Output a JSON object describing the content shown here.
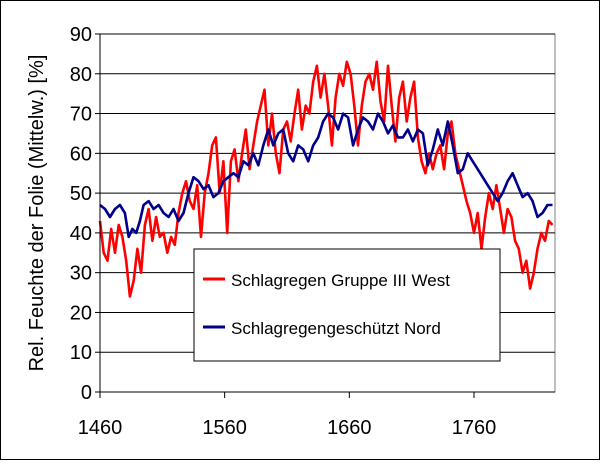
{
  "chart_data": {
    "type": "line",
    "title": "",
    "xlabel": "",
    "ylabel": "Rel. Feuchte der Folie (Mittelw.) [%]",
    "xlim": [
      1460,
      1825
    ],
    "ylim": [
      0,
      90
    ],
    "xticks": [
      1460,
      1560,
      1660,
      1760
    ],
    "yticks": [
      0,
      10,
      20,
      30,
      40,
      50,
      60,
      70,
      80,
      90
    ],
    "grid": "horizontal",
    "legend_position": "bottom-center inside plot",
    "series": [
      {
        "name": "Schlagregen Gruppe III West",
        "color": "#ff0000",
        "points": [
          [
            1460,
            43
          ],
          [
            1463,
            35
          ],
          [
            1466,
            33
          ],
          [
            1469,
            41
          ],
          [
            1472,
            35
          ],
          [
            1475,
            42
          ],
          [
            1478,
            39
          ],
          [
            1481,
            33
          ],
          [
            1484,
            24
          ],
          [
            1487,
            28
          ],
          [
            1490,
            36
          ],
          [
            1493,
            30
          ],
          [
            1496,
            42
          ],
          [
            1499,
            46
          ],
          [
            1502,
            38
          ],
          [
            1505,
            44
          ],
          [
            1508,
            39
          ],
          [
            1511,
            40
          ],
          [
            1514,
            35
          ],
          [
            1517,
            39
          ],
          [
            1520,
            37
          ],
          [
            1523,
            45
          ],
          [
            1526,
            50
          ],
          [
            1529,
            53
          ],
          [
            1532,
            48
          ],
          [
            1535,
            46
          ],
          [
            1538,
            52
          ],
          [
            1541,
            39
          ],
          [
            1544,
            50
          ],
          [
            1547,
            55
          ],
          [
            1550,
            62
          ],
          [
            1553,
            64
          ],
          [
            1556,
            50
          ],
          [
            1559,
            58
          ],
          [
            1562,
            40
          ],
          [
            1565,
            58
          ],
          [
            1568,
            61
          ],
          [
            1571,
            53
          ],
          [
            1574,
            60
          ],
          [
            1577,
            66
          ],
          [
            1580,
            56
          ],
          [
            1583,
            62
          ],
          [
            1586,
            68
          ],
          [
            1589,
            72
          ],
          [
            1592,
            76
          ],
          [
            1595,
            62
          ],
          [
            1598,
            70
          ],
          [
            1601,
            60
          ],
          [
            1604,
            55
          ],
          [
            1607,
            66
          ],
          [
            1610,
            68
          ],
          [
            1613,
            63
          ],
          [
            1616,
            70
          ],
          [
            1619,
            76
          ],
          [
            1622,
            66
          ],
          [
            1625,
            72
          ],
          [
            1628,
            70
          ],
          [
            1631,
            78
          ],
          [
            1634,
            82
          ],
          [
            1637,
            74
          ],
          [
            1640,
            80
          ],
          [
            1643,
            72
          ],
          [
            1646,
            62
          ],
          [
            1649,
            74
          ],
          [
            1652,
            80
          ],
          [
            1655,
            77
          ],
          [
            1658,
            83
          ],
          [
            1661,
            80
          ],
          [
            1664,
            72
          ],
          [
            1667,
            62
          ],
          [
            1670,
            72
          ],
          [
            1673,
            78
          ],
          [
            1676,
            80
          ],
          [
            1679,
            76
          ],
          [
            1682,
            83
          ],
          [
            1685,
            73
          ],
          [
            1688,
            68
          ],
          [
            1691,
            82
          ],
          [
            1694,
            72
          ],
          [
            1697,
            63
          ],
          [
            1700,
            74
          ],
          [
            1703,
            78
          ],
          [
            1706,
            68
          ],
          [
            1709,
            74
          ],
          [
            1712,
            78
          ],
          [
            1715,
            64
          ],
          [
            1718,
            58
          ],
          [
            1721,
            55
          ],
          [
            1724,
            60
          ],
          [
            1727,
            56
          ],
          [
            1730,
            60
          ],
          [
            1733,
            62
          ],
          [
            1736,
            56
          ],
          [
            1739,
            65
          ],
          [
            1742,
            68
          ],
          [
            1745,
            60
          ],
          [
            1748,
            56
          ],
          [
            1751,
            52
          ],
          [
            1754,
            48
          ],
          [
            1757,
            45
          ],
          [
            1760,
            40
          ],
          [
            1763,
            45
          ],
          [
            1766,
            36
          ],
          [
            1769,
            44
          ],
          [
            1772,
            50
          ],
          [
            1775,
            46
          ],
          [
            1778,
            52
          ],
          [
            1781,
            46
          ],
          [
            1784,
            40
          ],
          [
            1787,
            46
          ],
          [
            1790,
            44
          ],
          [
            1793,
            38
          ],
          [
            1796,
            36
          ],
          [
            1799,
            30
          ],
          [
            1802,
            33
          ],
          [
            1805,
            26
          ],
          [
            1808,
            30
          ],
          [
            1811,
            36
          ],
          [
            1814,
            40
          ],
          [
            1817,
            38
          ],
          [
            1820,
            43
          ],
          [
            1823,
            42
          ]
        ]
      },
      {
        "name": "Schlagregengeschützt Nord",
        "color": "#00008b",
        "points": [
          [
            1460,
            47
          ],
          [
            1464,
            46
          ],
          [
            1468,
            44
          ],
          [
            1472,
            46
          ],
          [
            1476,
            47
          ],
          [
            1480,
            45
          ],
          [
            1483,
            39
          ],
          [
            1486,
            41
          ],
          [
            1489,
            40
          ],
          [
            1492,
            43
          ],
          [
            1495,
            47
          ],
          [
            1499,
            48
          ],
          [
            1503,
            46
          ],
          [
            1507,
            47
          ],
          [
            1511,
            45
          ],
          [
            1515,
            44
          ],
          [
            1519,
            46
          ],
          [
            1523,
            43
          ],
          [
            1527,
            45
          ],
          [
            1531,
            50
          ],
          [
            1535,
            54
          ],
          [
            1539,
            53
          ],
          [
            1543,
            51
          ],
          [
            1547,
            52
          ],
          [
            1551,
            49
          ],
          [
            1555,
            50
          ],
          [
            1559,
            53
          ],
          [
            1563,
            54
          ],
          [
            1567,
            55
          ],
          [
            1571,
            54
          ],
          [
            1575,
            58
          ],
          [
            1579,
            57
          ],
          [
            1583,
            60
          ],
          [
            1587,
            57
          ],
          [
            1591,
            62
          ],
          [
            1595,
            66
          ],
          [
            1599,
            62
          ],
          [
            1603,
            65
          ],
          [
            1607,
            66
          ],
          [
            1611,
            60
          ],
          [
            1615,
            58
          ],
          [
            1619,
            62
          ],
          [
            1623,
            61
          ],
          [
            1627,
            58
          ],
          [
            1631,
            62
          ],
          [
            1635,
            64
          ],
          [
            1639,
            68
          ],
          [
            1643,
            70
          ],
          [
            1647,
            69
          ],
          [
            1651,
            66
          ],
          [
            1655,
            70
          ],
          [
            1659,
            69
          ],
          [
            1663,
            62
          ],
          [
            1667,
            66
          ],
          [
            1671,
            69
          ],
          [
            1675,
            68
          ],
          [
            1679,
            66
          ],
          [
            1683,
            70
          ],
          [
            1687,
            68
          ],
          [
            1691,
            65
          ],
          [
            1695,
            67
          ],
          [
            1699,
            64
          ],
          [
            1703,
            64
          ],
          [
            1707,
            66
          ],
          [
            1711,
            63
          ],
          [
            1715,
            66
          ],
          [
            1719,
            65
          ],
          [
            1723,
            57
          ],
          [
            1727,
            61
          ],
          [
            1731,
            66
          ],
          [
            1735,
            62
          ],
          [
            1739,
            68
          ],
          [
            1743,
            62
          ],
          [
            1747,
            55
          ],
          [
            1751,
            56
          ],
          [
            1755,
            60
          ],
          [
            1759,
            58
          ],
          [
            1763,
            56
          ],
          [
            1767,
            54
          ],
          [
            1771,
            52
          ],
          [
            1775,
            50
          ],
          [
            1779,
            48
          ],
          [
            1783,
            50
          ],
          [
            1787,
            53
          ],
          [
            1791,
            55
          ],
          [
            1795,
            52
          ],
          [
            1799,
            49
          ],
          [
            1803,
            50
          ],
          [
            1807,
            48
          ],
          [
            1811,
            44
          ],
          [
            1815,
            45
          ],
          [
            1819,
            47
          ],
          [
            1823,
            47
          ]
        ]
      }
    ]
  }
}
